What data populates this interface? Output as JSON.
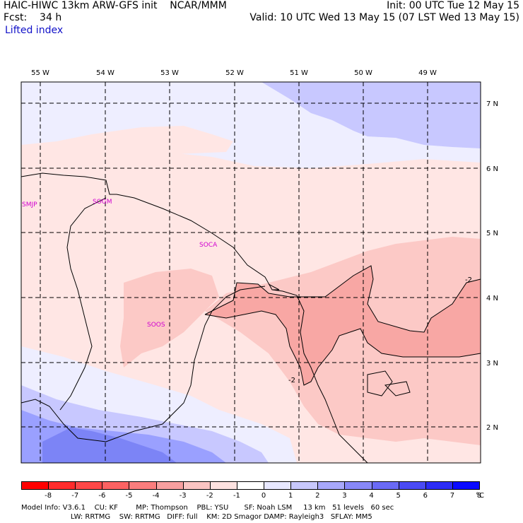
{
  "header": {
    "line1_left": "HAIC-HIWC 13km ARW-GFS init    NCAR/MMM",
    "line2_left": "Fcst:    34 h",
    "line3_left": "Lifted index",
    "line1_right": "Init: 00 UTC Tue 12 May 15",
    "line2_right": "Valid: 10 UTC Wed 13 May 15 (07 LST Wed 13 May 15)"
  },
  "map": {
    "lon_labels": [
      "55 W",
      "54 W",
      "53 W",
      "52 W",
      "51 W",
      "50 W",
      "49 W"
    ],
    "lat_labels": [
      "7 N",
      "6 N",
      "5 N",
      "4 N",
      "3 N",
      "2 N"
    ],
    "stations": [
      "SMJP",
      "SOGM",
      "SOCA",
      "SOOS"
    ],
    "contour_labels": [
      "-2",
      "-2"
    ],
    "colors": {
      "frame": "#000000",
      "coast": "#000000",
      "station": "#d000d0",
      "light_red": "#ffe6e4",
      "mid_red": "#fcc9c6",
      "deep_red": "#f8a7a4",
      "light_blue": "#eeeeff",
      "mid_blue": "#c8c8ff",
      "deep_blue": "#9aa0ff",
      "deepest_blue": "#7c84f6"
    }
  },
  "colorbar": {
    "labels": [
      "-8",
      "-7",
      "-6",
      "-5",
      "-4",
      "-3",
      "-2",
      "-1",
      "0",
      "1",
      "2",
      "3",
      "4",
      "5",
      "6",
      "7",
      "8"
    ],
    "unit": "°C",
    "colors": [
      "#ff0000",
      "#ff2c2c",
      "#fe4848",
      "#fc6262",
      "#fa7d7d",
      "#f8a0a0",
      "#fbc5c3",
      "#fde2e0",
      "#ffffff",
      "#e8e8ff",
      "#c8c8fc",
      "#a8a8fa",
      "#8888f8",
      "#6a6af6",
      "#4a4af4",
      "#2c2cf6",
      "#0a0aff"
    ]
  },
  "footer": {
    "line1": "Model Info: V3.6.1    CU: KF        MP: Thompson    PBL: YSU       SF: Noah LSM     13 km   51 levels   60 sec",
    "line2": "                      LW: RRTMG    SW: RRTMG   DIFF: full    KM: 2D Smagor DAMP: Rayleigh3   SFLAY: MM5"
  }
}
